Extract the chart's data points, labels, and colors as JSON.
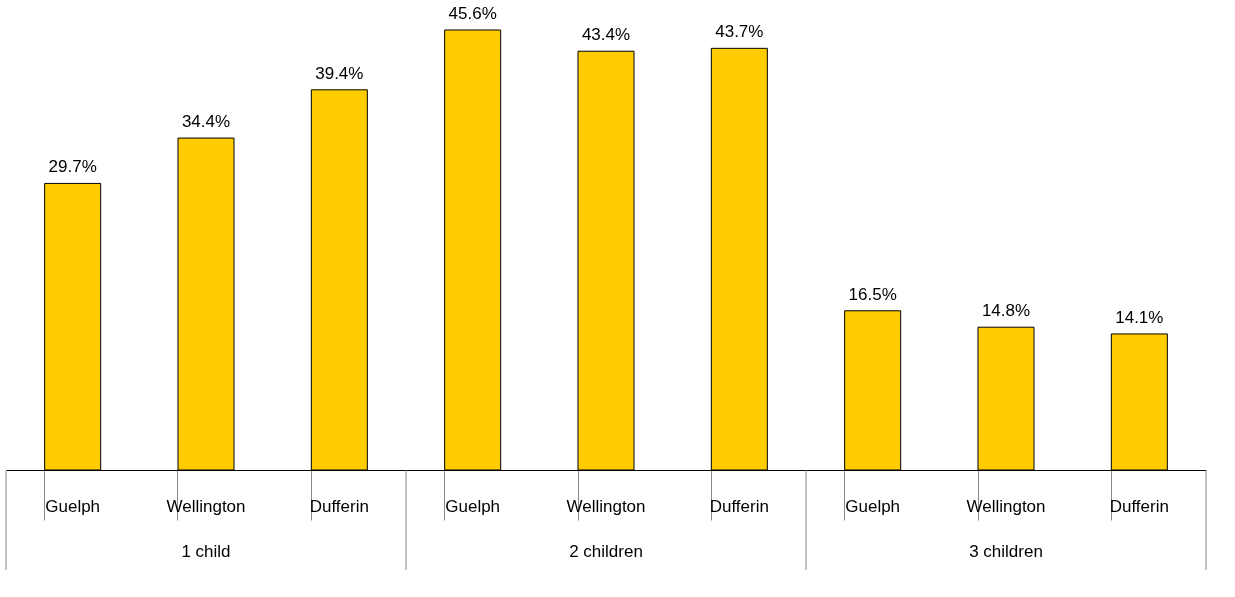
{
  "chart_data": {
    "type": "bar",
    "categories": [
      "Guelph",
      "Wellington",
      "Dufferin",
      "Guelph",
      "Wellington",
      "Dufferin",
      "Guelph",
      "Wellington",
      "Dufferin"
    ],
    "values": [
      29.7,
      34.4,
      39.4,
      45.6,
      43.4,
      43.7,
      16.5,
      14.8,
      14.1
    ],
    "value_labels": [
      "29.7%",
      "34.4%",
      "39.4%",
      "45.6%",
      "43.4%",
      "43.7%",
      "16.5%",
      "14.8%",
      "14.1%"
    ],
    "color": "#ffcc00",
    "annotations": [
      "1 child",
      "2 children",
      "3 children"
    ],
    "grid": false
  }
}
